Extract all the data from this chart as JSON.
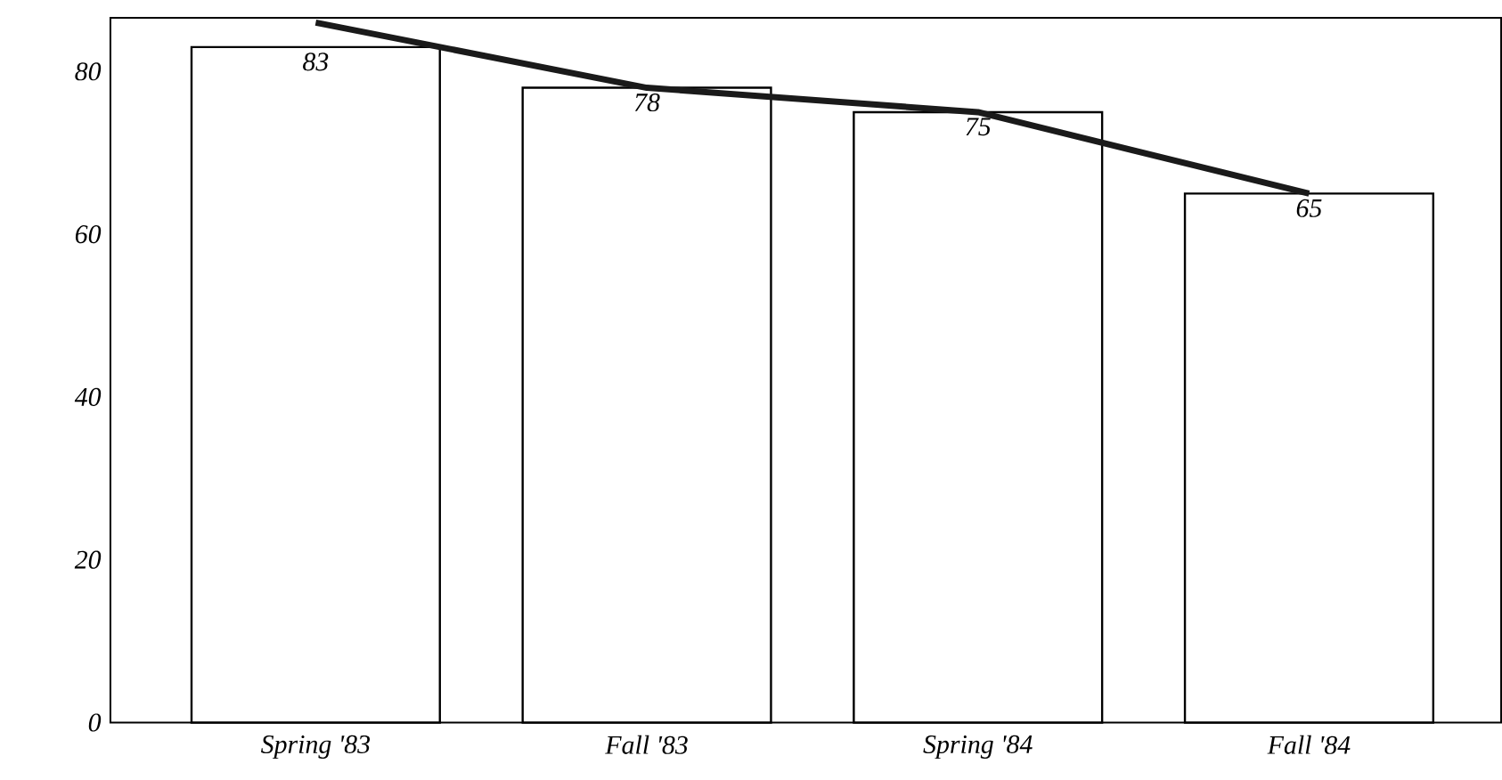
{
  "chart_data": {
    "type": "bar",
    "categories": [
      "Spring '83",
      "Fall '83",
      "Spring '84",
      "Fall '84"
    ],
    "series": [
      {
        "color": "#ffffff",
        "values": [
          83,
          78,
          75,
          65
        ],
        "value_labels": [
          "83",
          "78",
          "75",
          "65"
        ]
      },
      {
        "type": "line",
        "color": "#1a1a1a",
        "values": [
          86,
          78,
          75,
          65
        ]
      }
    ],
    "ylim": [
      0,
      86.6
    ],
    "yticks": [
      0,
      20,
      40,
      60,
      80
    ],
    "grid": false,
    "marker": "none",
    "line_style": "solid"
  }
}
